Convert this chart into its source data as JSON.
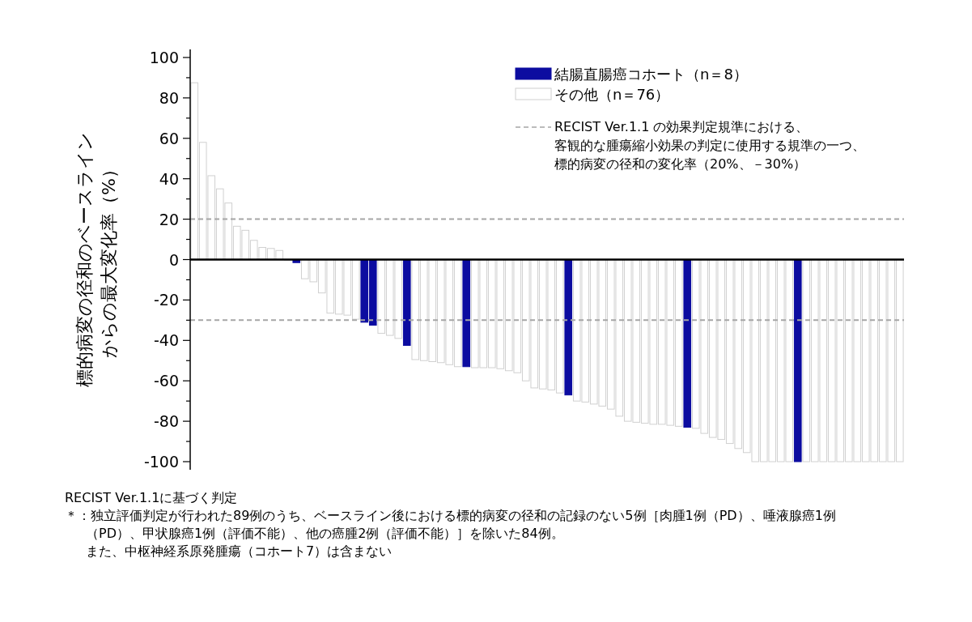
{
  "chart_data": {
    "type": "bar",
    "categories": [
      null,
      null,
      null,
      null,
      null,
      null,
      null,
      null,
      null,
      null,
      null,
      null,
      null,
      null,
      null,
      null,
      null,
      null,
      null,
      null,
      null,
      null,
      null,
      null,
      null,
      null,
      null,
      null,
      null,
      null,
      null,
      null,
      null,
      null,
      null,
      null,
      null,
      null,
      null,
      null,
      null,
      null,
      null,
      null,
      null,
      null,
      null,
      null,
      null,
      null,
      null,
      null,
      null,
      null,
      null,
      null,
      null,
      null,
      null,
      null,
      null,
      null,
      null,
      null,
      null,
      null,
      null,
      null,
      null,
      null,
      null,
      null,
      null,
      null,
      null,
      null,
      null,
      null,
      null,
      null,
      null,
      null,
      null,
      null
    ],
    "series": [
      {
        "name": "結腸直腸癌コホート（n＝8）",
        "color": "#0c0ca0",
        "values": [
          null,
          null,
          null,
          null,
          null,
          null,
          null,
          null,
          null,
          null,
          null,
          null,
          -1.5,
          null,
          null,
          null,
          null,
          null,
          null,
          null,
          -31,
          -32.5,
          null,
          null,
          null,
          -42.5,
          null,
          null,
          null,
          null,
          null,
          null,
          -53,
          null,
          null,
          null,
          null,
          null,
          null,
          null,
          null,
          null,
          null,
          null,
          -67,
          null,
          null,
          null,
          null,
          null,
          null,
          null,
          null,
          null,
          null,
          null,
          null,
          null,
          -83,
          null,
          null,
          null,
          null,
          null,
          null,
          null,
          null,
          null,
          null,
          null,
          null,
          -100,
          null,
          null,
          null,
          null,
          null,
          null,
          null,
          null,
          null,
          null,
          null,
          null
        ]
      },
      {
        "name": "その他（n＝76）",
        "color": "#ffffff",
        "values": [
          87.5,
          58,
          41.5,
          35,
          28,
          16.5,
          14.5,
          9.5,
          6,
          5.5,
          4.5,
          0,
          null,
          -9.5,
          -11,
          -16.5,
          -26.5,
          -27,
          -27.5,
          -29.5,
          null,
          null,
          -36.5,
          -37.5,
          -39,
          null,
          -49.5,
          -50,
          -50.5,
          -51,
          -52,
          -53,
          null,
          -53.5,
          -53.5,
          -53.5,
          -54,
          -55,
          -56,
          -60,
          -63.5,
          -64,
          -64.5,
          -66,
          null,
          -70,
          -70.5,
          -71.5,
          -72.5,
          -74,
          -77.5,
          -80,
          -80.5,
          -81,
          -81.5,
          -81.5,
          -82,
          -82.5,
          null,
          -83.5,
          -86,
          -88,
          -89,
          -91,
          -93.5,
          -95.5,
          -100,
          -100,
          -100,
          -100,
          -100,
          null,
          -100,
          -100,
          -100,
          -100,
          -100,
          -100,
          -100,
          -100,
          -100,
          -100,
          -100,
          -100
        ]
      }
    ],
    "ylabel": "標的病変の径和のベースラインからの最大変化率（%）",
    "ylim": [
      -104,
      104
    ],
    "yticks": [
      -100,
      {
        "value": -90,
        "label": null
      },
      -80,
      {
        "value": -70,
        "label": null
      },
      -60,
      {
        "value": -50,
        "label": null
      },
      -40,
      {
        "value": -30,
        "label": null
      },
      -20,
      {
        "value": -10,
        "label": null
      },
      0,
      {
        "value": 10,
        "label": null
      },
      20,
      {
        "value": 30,
        "label": null
      },
      40,
      {
        "value": 50,
        "label": null
      },
      60,
      {
        "value": 70,
        "label": null
      },
      80,
      {
        "value": 90,
        "label": null
      },
      100
    ],
    "ref_lines": [
      {
        "axis": "y",
        "value": 20,
        "label": "RECIST Ver.1.1 の効果判定規準における、客観的な腫瘍縮小効果の判定に使用する規準の一つ、標的病変の径和の変化率（20%、－30%）",
        "color": "#a6a6a6",
        "line_style": "dashed"
      },
      {
        "axis": "y",
        "value": -30,
        "color": "#a6a6a6",
        "line_style": "dashed"
      }
    ],
    "legend": "top right",
    "grid": false,
    "tick_labels": "y",
    "annotations": [
      "RECIST Ver.1.1に基づく判定",
      "＊：独立評価判定が行われた89例のうち、ベースライン後における標的病変の径和の記録のない5例［肉腫1例（PD）、唾液腺癌1例（PD）、甲状腺癌1例（評価不能）、他の癌腫2例（評価不能）］を除いた84例。また、中枢神経系原発腫瘍（コホート7）は含まない"
    ]
  }
}
